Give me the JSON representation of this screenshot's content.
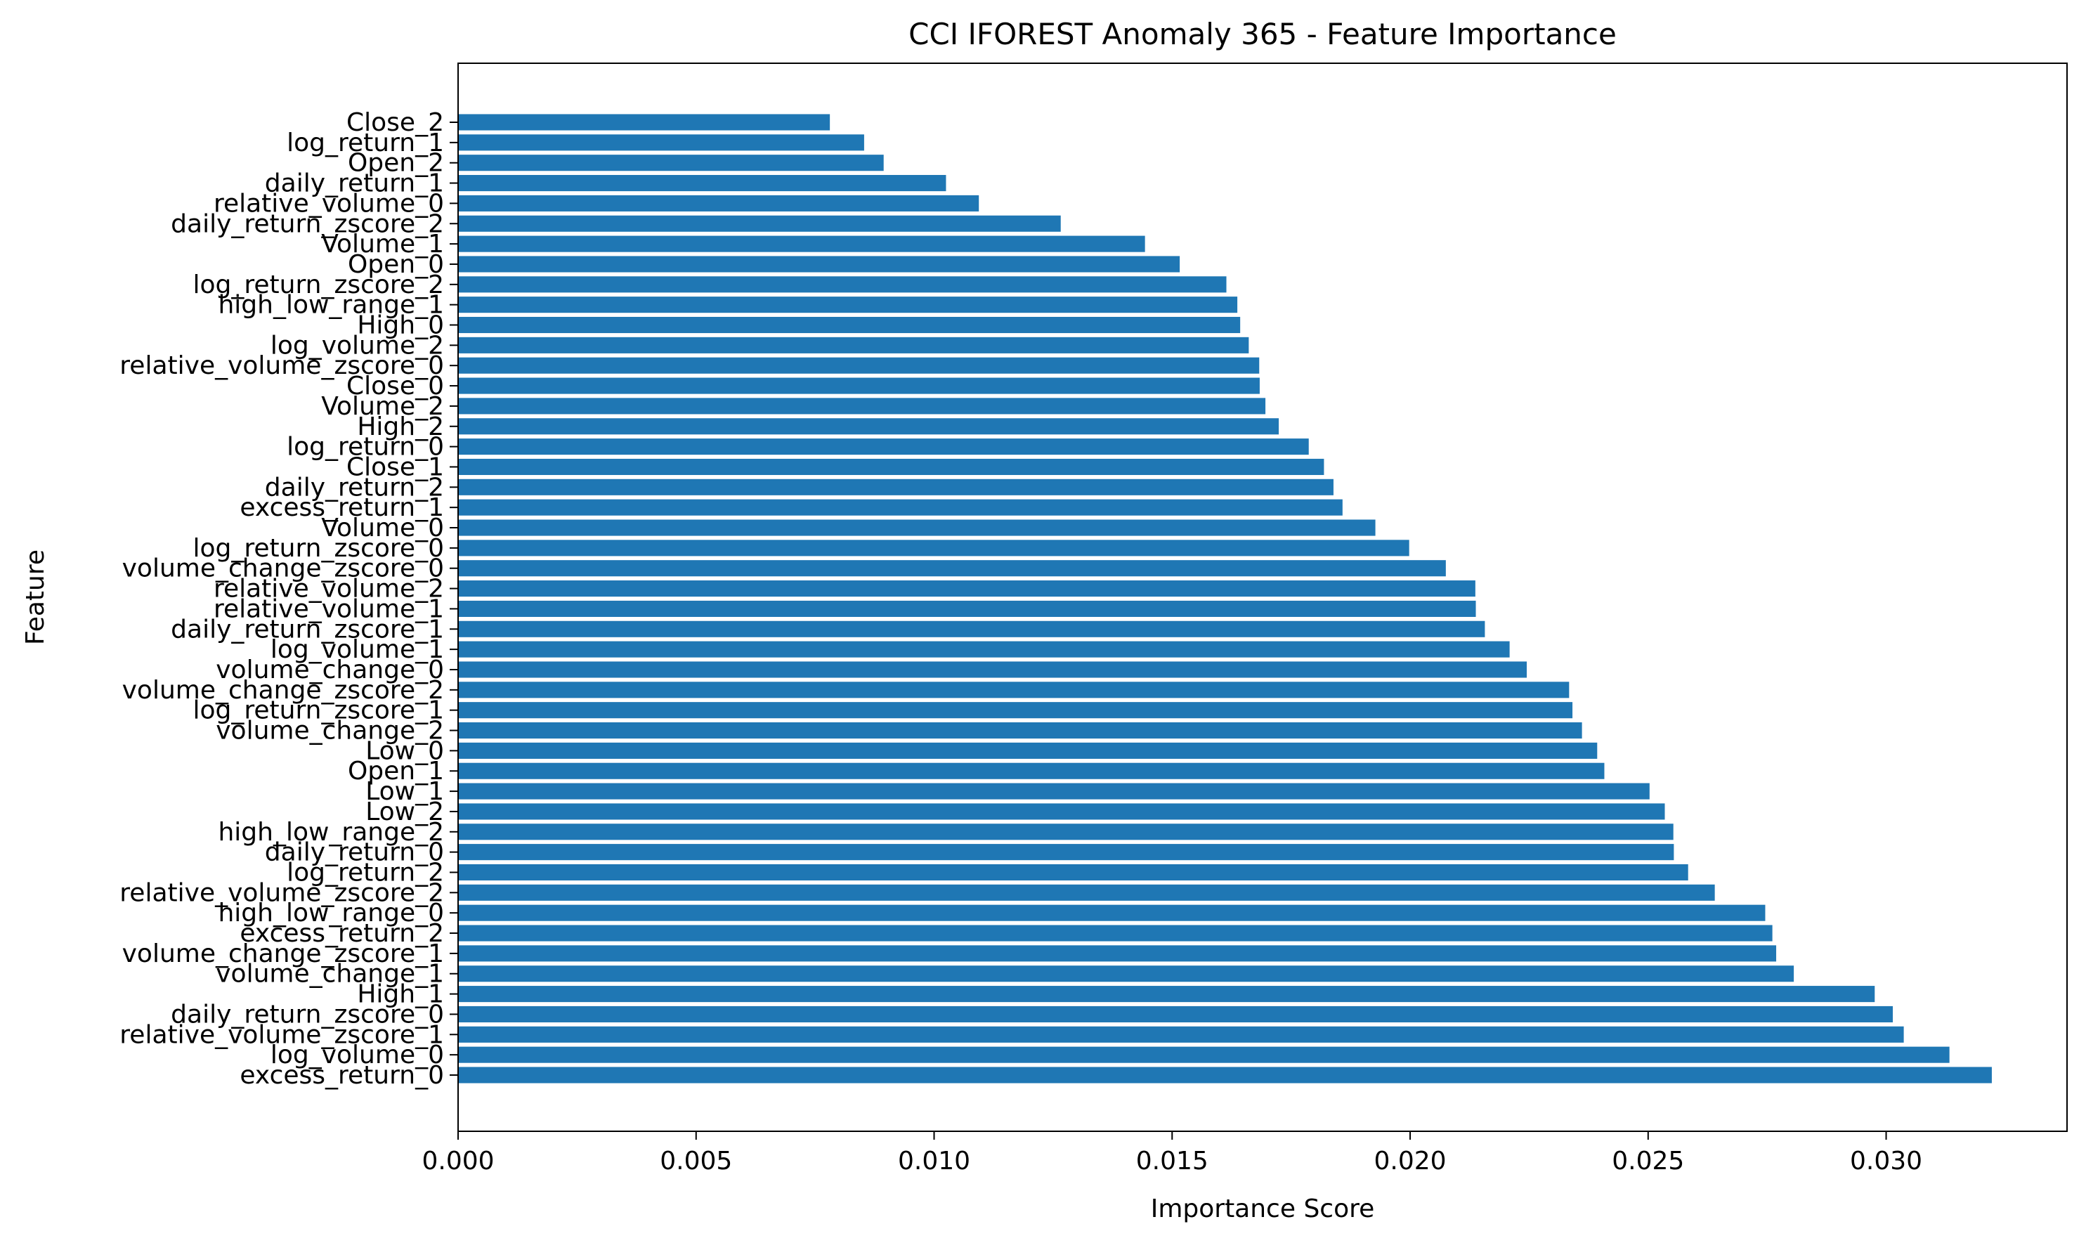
{
  "chart_data": {
    "type": "bar",
    "orientation": "horizontal",
    "title": "CCI IFOREST Anomaly 365 - Feature Importance",
    "xlabel": "Importance Score",
    "ylabel": "Feature",
    "xlim": [
      0,
      0.0338
    ],
    "xticks": [
      0.0,
      0.005,
      0.01,
      0.015,
      0.02,
      0.025,
      0.03
    ],
    "xtick_labels": [
      "0.000",
      "0.005",
      "0.010",
      "0.015",
      "0.020",
      "0.025",
      "0.030"
    ],
    "grid": false,
    "bar_color": "#1f77b4",
    "categories": [
      "Close_2",
      "log_return_1",
      "Open_2",
      "daily_return_1",
      "relative_volume_0",
      "daily_return_zscore_2",
      "Volume_1",
      "Open_0",
      "log_return_zscore_2",
      "high_low_range_1",
      "High_0",
      "log_volume_2",
      "relative_volume_zscore_0",
      "Close_0",
      "Volume_2",
      "High_2",
      "log_return_0",
      "Close_1",
      "daily_return_2",
      "excess_return_1",
      "Volume_0",
      "log_return_zscore_0",
      "volume_change_zscore_0",
      "relative_volume_2",
      "relative_volume_1",
      "daily_return_zscore_1",
      "log_volume_1",
      "volume_change_0",
      "volume_change_zscore_2",
      "log_return_zscore_1",
      "volume_change_2",
      "Low_0",
      "Open_1",
      "Low_1",
      "Low_2",
      "high_low_range_2",
      "daily_return_0",
      "log_return_2",
      "relative_volume_zscore_2",
      "high_low_range_0",
      "excess_return_2",
      "volume_change_zscore_1",
      "volume_change_1",
      "High_1",
      "daily_return_zscore_0",
      "relative_volume_zscore_1",
      "log_volume_0",
      "excess_return_0"
    ],
    "values": [
      0.00781,
      0.00853,
      0.00894,
      0.01025,
      0.01094,
      0.01266,
      0.01443,
      0.01516,
      0.01614,
      0.01637,
      0.01643,
      0.01661,
      0.01683,
      0.01684,
      0.01696,
      0.01724,
      0.01787,
      0.01819,
      0.01839,
      0.01858,
      0.01927,
      0.01998,
      0.02075,
      0.02137,
      0.02138,
      0.02157,
      0.02209,
      0.02245,
      0.02334,
      0.02341,
      0.02361,
      0.02393,
      0.02408,
      0.02503,
      0.02535,
      0.02553,
      0.02554,
      0.02584,
      0.0264,
      0.02746,
      0.02761,
      0.02769,
      0.02806,
      0.02976,
      0.03014,
      0.03037,
      0.03133,
      0.03222
    ]
  }
}
